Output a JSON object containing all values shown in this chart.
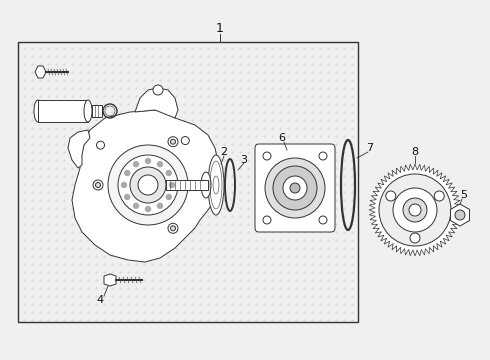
{
  "bg_color": "#f0f0f0",
  "box_bg": "#ebebeb",
  "line_color": "#333333",
  "text_color": "#111111",
  "fig_width": 4.9,
  "fig_height": 3.6,
  "dpi": 100,
  "label_1": "1",
  "label_2": "2",
  "label_3": "3",
  "label_4": "4",
  "label_5": "5",
  "label_6": "6",
  "label_7": "7",
  "label_8": "8"
}
